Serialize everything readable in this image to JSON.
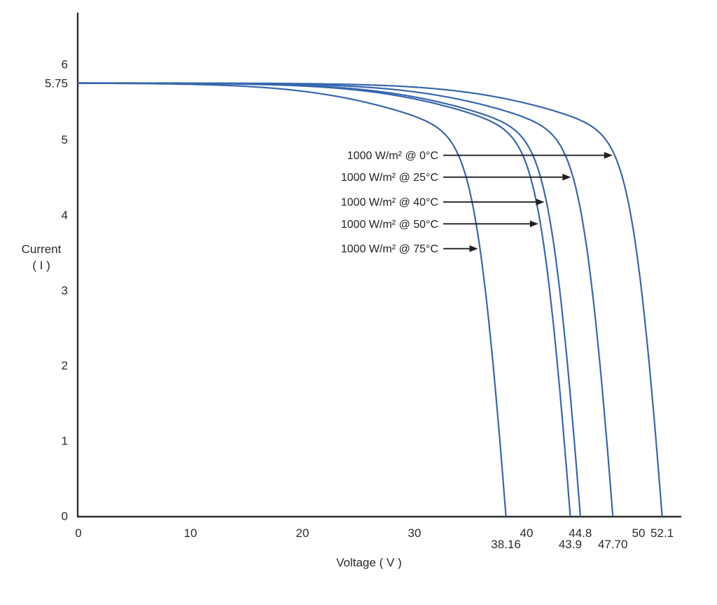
{
  "figure": {
    "background": "#ffffff",
    "description": "Solar module I-V characteristic curves at constant irradiance for five cell temperatures"
  },
  "chart_data": {
    "type": "line",
    "title": "",
    "xlabel": "Voltage ( V )",
    "ylabel_line1": "Current",
    "ylabel_line2": "( I )",
    "x_ticks": [
      0,
      10,
      20,
      30,
      40,
      50
    ],
    "y_ticks": [
      0,
      1,
      2,
      3,
      4,
      5,
      6
    ],
    "x_axis_range": [
      0,
      53.8
    ],
    "y_axis_range": [
      0,
      6.75
    ],
    "grid": false,
    "legend_position": "inline-arrow-annotations",
    "short_circuit_current": 5.75,
    "short_circuit_current_label": "5.75",
    "line_color": "#3767ae",
    "axis_color": "#2d2d2d",
    "arrow_color": "#1f1f1f",
    "text_color": "#2a2a2a",
    "series": [
      {
        "name": "1000 W/m² @  0°C",
        "irradiance_w_m2": 1000,
        "temperature_c": 0,
        "isc_a": 5.75,
        "voc_v": 52.1,
        "voc_label": "52.1",
        "voc_label_row": 1,
        "pointer_i": 4.79
      },
      {
        "name": "1000 W/m² @ 25°C",
        "irradiance_w_m2": 1000,
        "temperature_c": 25,
        "isc_a": 5.75,
        "voc_v": 47.7,
        "voc_label": "47.70",
        "voc_label_row": 2,
        "pointer_i": 4.5
      },
      {
        "name": "1000 W/m² @ 40°C",
        "irradiance_w_m2": 1000,
        "temperature_c": 40,
        "isc_a": 5.75,
        "voc_v": 44.8,
        "voc_label": "44.8",
        "voc_label_row": 1,
        "pointer_i": 4.17
      },
      {
        "name": "1000 W/m² @ 50°C",
        "irradiance_w_m2": 1000,
        "temperature_c": 50,
        "isc_a": 5.75,
        "voc_v": 43.9,
        "voc_label": "43.9",
        "voc_label_row": 2,
        "pointer_i": 3.88
      },
      {
        "name": "1000 W/m² @ 75°C",
        "irradiance_w_m2": 1000,
        "temperature_c": 75,
        "isc_a": 5.75,
        "voc_v": 38.16,
        "voc_label": "38.16",
        "voc_label_row": 2,
        "pointer_i": 3.55
      }
    ]
  }
}
